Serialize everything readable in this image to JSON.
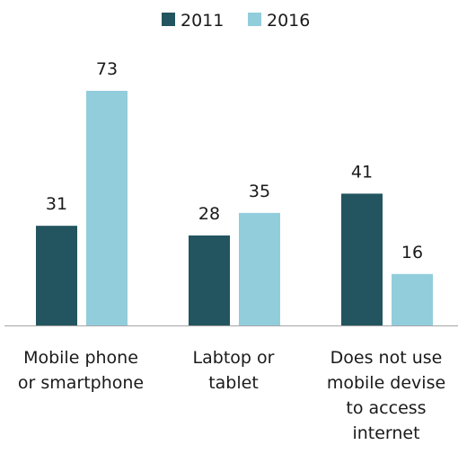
{
  "chart_data": {
    "type": "bar",
    "categories": [
      [
        "Mobile phone",
        "or smartphone"
      ],
      [
        "Labtop or",
        "tablet"
      ],
      [
        "Does not use",
        "mobile devise",
        "to access",
        "internet"
      ]
    ],
    "series": [
      {
        "name": "2011",
        "values": [
          31,
          28,
          41
        ],
        "color": "#22555f"
      },
      {
        "name": "2016",
        "values": [
          73,
          35,
          16
        ],
        "color": "#92cddc"
      }
    ],
    "ylim": [
      0,
      80
    ],
    "grid": false,
    "legend_position": "top-center",
    "show_data_labels": true,
    "axis_color": "#a6a6a6"
  }
}
